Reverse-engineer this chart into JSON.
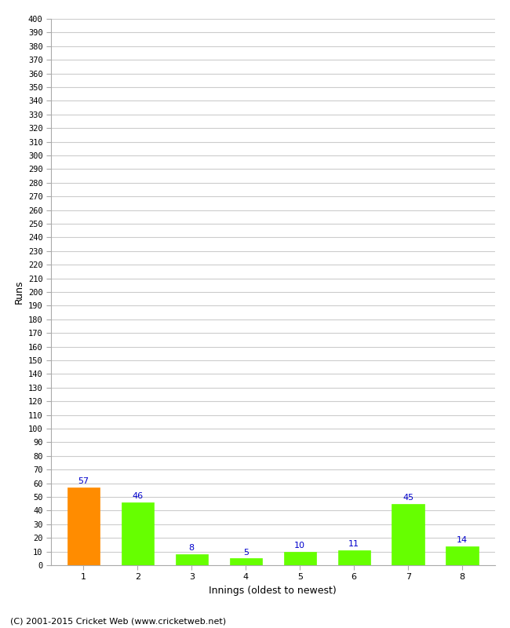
{
  "xlabel": "Innings (oldest to newest)",
  "ylabel": "Runs",
  "categories": [
    "1",
    "2",
    "3",
    "4",
    "5",
    "6",
    "7",
    "8"
  ],
  "values": [
    57,
    46,
    8,
    5,
    10,
    11,
    45,
    14
  ],
  "bar_colors": [
    "#ff8c00",
    "#66ff00",
    "#66ff00",
    "#66ff00",
    "#66ff00",
    "#66ff00",
    "#66ff00",
    "#66ff00"
  ],
  "label_color": "#0000cc",
  "ylim": [
    0,
    400
  ],
  "ytick_step": 10,
  "background_color": "#ffffff",
  "grid_color": "#cccccc",
  "copyright": "(C) 2001-2015 Cricket Web (www.cricketweb.net)"
}
